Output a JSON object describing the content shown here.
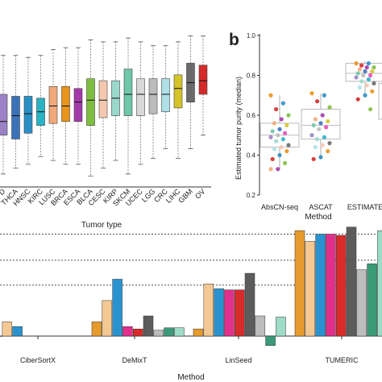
{
  "panel_label_b": "b",
  "colors": {
    "BLCA": "#7fbf3f",
    "LUSC": "#f2a87a",
    "KIRC": "#2ab3c4",
    "BRCA": "#e8941a",
    "THCA": "#3b73b9",
    "KIRP": "#9ad8cc",
    "LGG": "#bcbcbc",
    "COAD": "#9b82c4",
    "HNSC": "#2a8fc4",
    "UCEC": "#d8d8d8",
    "LIHC": "#d4c42a",
    "GBM": "#6a6a6a",
    "OV": "#d42a2a",
    "CESC": "#f5c8b0",
    "SKCM": "#6fc6a8",
    "PRAD": "#e84bb4",
    "ESCA": "#a23aa8",
    "CRC": "#aee0e8",
    "orange": "#e79b2e",
    "peach": "#f3c893",
    "blue": "#2a93cf",
    "magenta": "#e0308c",
    "red": "#d92b2b",
    "darkgray": "#5c5c5c",
    "lightgray": "#bdbdbd",
    "teal": "#3b9a78",
    "mint": "#9ddcc6"
  },
  "chart_data": [
    {
      "type": "box",
      "xlabel": "Tumor type",
      "categories": [
        "D",
        "THCA",
        "HNSC",
        "KIRC",
        "LUSC",
        "BRCA",
        "ESCA",
        "BLCA",
        "CESC",
        "KIRP",
        "SKCM",
        "UCEC",
        "LGG",
        "CRC",
        "LIHC",
        "GBM",
        "OV"
      ],
      "boxes": [
        {
          "q1": 0.45,
          "median": 0.52,
          "q3": 0.66,
          "whisker_low": 0.25,
          "whisker_high": 0.86,
          "color": "#9b82c4"
        },
        {
          "q1": 0.43,
          "median": 0.55,
          "q3": 0.65,
          "whisker_low": 0.28,
          "whisker_high": 0.86,
          "color": "#3b73b9"
        },
        {
          "q1": 0.46,
          "median": 0.56,
          "q3": 0.65,
          "whisker_low": 0.3,
          "whisker_high": 0.85,
          "color": "#2a8fc4"
        },
        {
          "q1": 0.5,
          "median": 0.57,
          "q3": 0.64,
          "whisker_low": 0.34,
          "whisker_high": 0.86,
          "color": "#2ab3c4"
        },
        {
          "q1": 0.51,
          "median": 0.6,
          "q3": 0.7,
          "whisker_low": 0.32,
          "whisker_high": 0.89,
          "color": "#f2a87a"
        },
        {
          "q1": 0.52,
          "median": 0.6,
          "q3": 0.7,
          "whisker_low": 0.3,
          "whisker_high": 0.9,
          "color": "#e8941a"
        },
        {
          "q1": 0.52,
          "median": 0.62,
          "q3": 0.69,
          "whisker_low": 0.3,
          "whisker_high": 0.9,
          "color": "#a23aa8"
        },
        {
          "q1": 0.5,
          "median": 0.63,
          "q3": 0.74,
          "whisker_low": 0.24,
          "whisker_high": 0.94,
          "color": "#7fbf3f"
        },
        {
          "q1": 0.54,
          "median": 0.63,
          "q3": 0.73,
          "whisker_low": 0.28,
          "whisker_high": 0.93,
          "color": "#f5c8b0"
        },
        {
          "q1": 0.55,
          "median": 0.64,
          "q3": 0.73,
          "whisker_low": 0.32,
          "whisker_high": 0.93,
          "color": "#9ad8cc"
        },
        {
          "q1": 0.55,
          "median": 0.66,
          "q3": 0.79,
          "whisker_low": 0.25,
          "whisker_high": 0.95,
          "color": "#6fc6a8"
        },
        {
          "q1": 0.55,
          "median": 0.66,
          "q3": 0.74,
          "whisker_low": 0.3,
          "whisker_high": 0.93,
          "color": "#d8d8d8"
        },
        {
          "q1": 0.56,
          "median": 0.66,
          "q3": 0.74,
          "whisker_low": 0.33,
          "whisker_high": 0.91,
          "color": "#bcbcbc"
        },
        {
          "q1": 0.57,
          "median": 0.66,
          "q3": 0.74,
          "whisker_low": 0.38,
          "whisker_high": 0.91,
          "color": "#aee0e8"
        },
        {
          "q1": 0.59,
          "median": 0.69,
          "q3": 0.76,
          "whisker_low": 0.33,
          "whisker_high": 0.93,
          "color": "#d4c42a"
        },
        {
          "q1": 0.62,
          "median": 0.72,
          "q3": 0.82,
          "whisker_low": 0.38,
          "whisker_high": 0.96,
          "color": "#6a6a6a"
        },
        {
          "q1": 0.66,
          "median": 0.73,
          "q3": 0.81,
          "whisker_low": 0.45,
          "whisker_high": 0.96,
          "color": "#d42a2a"
        }
      ]
    },
    {
      "type": "box_with_points",
      "panel": "b",
      "title": "",
      "xlabel": "Method",
      "ylabel": "Estimated tumor purity (median)",
      "ylim": [
        0.2,
        1.0
      ],
      "yticks": [
        "0.2",
        "0.4",
        "0.6",
        "0.8",
        "1.0"
      ],
      "categories": [
        "AbsCN-seq",
        "ASCAT",
        "ESTIMATE"
      ],
      "boxes": [
        {
          "q1": 0.44,
          "median": 0.5,
          "q3": 0.56,
          "whisker_low": 0.33,
          "whisker_high": 0.7
        },
        {
          "q1": 0.48,
          "median": 0.55,
          "q3": 0.63,
          "whisker_low": 0.38,
          "whisker_high": 0.71
        },
        {
          "q1": 0.77,
          "median": 0.81,
          "q3": 0.86,
          "whisker_low": 0.69,
          "whisker_high": 0.87
        }
      ],
      "points": [
        [
          0.7,
          0.66,
          0.63,
          0.6,
          0.58,
          0.56,
          0.55,
          0.53,
          0.52,
          0.51,
          0.5,
          0.49,
          0.48,
          0.47,
          0.45,
          0.44,
          0.43,
          0.42,
          0.4,
          0.38,
          0.36,
          0.33,
          0.33
        ],
        [
          0.71,
          0.7,
          0.67,
          0.64,
          0.6,
          0.58,
          0.57,
          0.56,
          0.55,
          0.54,
          0.53,
          0.5,
          0.49,
          0.48,
          0.46,
          0.45,
          0.44,
          0.42,
          0.39,
          0.38
        ],
        [
          0.86,
          0.86,
          0.85,
          0.84,
          0.84,
          0.83,
          0.82,
          0.82,
          0.81,
          0.8,
          0.8,
          0.79,
          0.78,
          0.77,
          0.76,
          0.75,
          0.74,
          0.72,
          0.7,
          0.68,
          0.63
        ]
      ],
      "point_colors": [
        "#e8941a",
        "#2a8fc4",
        "#d42a2a",
        "#7fbf3f",
        "#a23aa8",
        "#f2a87a",
        "#d4c42a",
        "#3b73b9",
        "#6fc6a8",
        "#e84bb4",
        "#bcbcbc",
        "#9b82c4",
        "#2ab3c4",
        "#9ad8cc",
        "#6a6a6a",
        "#f5c8b0",
        "#aee0e8"
      ]
    },
    {
      "type": "bar",
      "xlabel": "Method",
      "categories": [
        "CiberSortX",
        "DeMixT",
        "LinSeed",
        "TUMERIC"
      ],
      "series_colors": [
        "#e79b2e",
        "#f3c893",
        "#2a93cf",
        "#e0308c",
        "#d92b2b",
        "#5c5c5c",
        "#bdbdbd",
        "#3b9a78",
        "#9ddcc6"
      ],
      "values": [
        [
          0.0,
          0.12,
          0.08,
          null,
          null,
          null,
          null,
          null,
          null
        ],
        [
          0.12,
          0.3,
          0.48,
          0.08,
          0.06,
          0.17,
          0.05,
          0.07,
          0.07
        ],
        [
          0.06,
          0.44,
          0.4,
          0.39,
          0.39,
          0.53,
          0.17,
          -0.08,
          0.16
        ],
        [
          0.89,
          0.8,
          0.86,
          0.86,
          0.85,
          0.92,
          0.56,
          0.61,
          0.89
        ]
      ]
    }
  ]
}
